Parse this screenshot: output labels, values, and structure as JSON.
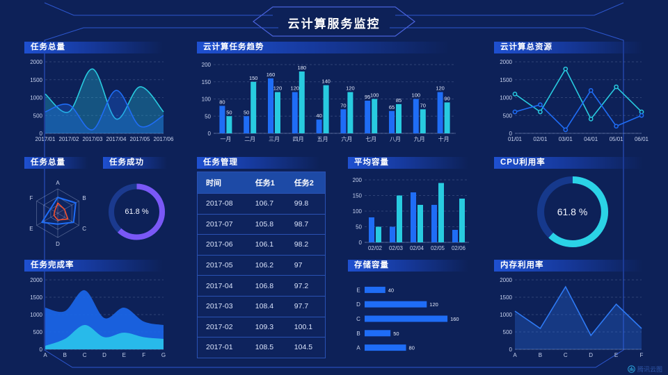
{
  "header": {
    "title": "云计算服务监控"
  },
  "watermark": {
    "label": "腾讯云图"
  },
  "colors": {
    "background": "#0d2158",
    "blue": "#1f6df6",
    "cyan": "#28cbe0",
    "purple": "#7a58f6",
    "cyan_bright": "#2bd3e6",
    "orange": "#f5502e",
    "donut_track": "#16398c",
    "axis_text": "#c7d2ee",
    "frame_line": "#2d57cf"
  },
  "panels": {
    "task_total_line": {
      "title": "任务总量"
    },
    "task_trend": {
      "title": "云计算任务趋势"
    },
    "total_resource": {
      "title": "云计算总资源"
    },
    "task_total_radar": {
      "title": "任务总量"
    },
    "task_success": {
      "title": "任务成功"
    },
    "task_manage": {
      "title": "任务管理"
    },
    "avg_capacity": {
      "title": "平均容量"
    },
    "cpu_usage": {
      "title": "CPU利用率"
    },
    "completion_rate": {
      "title": "任务完成率"
    },
    "storage": {
      "title": "存储容量"
    },
    "memory_usage": {
      "title": "内存利用率"
    }
  },
  "table": {
    "columns": [
      "时间",
      "任务1",
      "任务2"
    ],
    "rows": [
      [
        "2017-08",
        "106.7",
        "99.8"
      ],
      [
        "2017-07",
        "105.8",
        "98.7"
      ],
      [
        "2017-06",
        "106.1",
        "98.2"
      ],
      [
        "2017-05",
        "106.2",
        "97"
      ],
      [
        "2017-04",
        "106.8",
        "97.2"
      ],
      [
        "2017-03",
        "108.4",
        "97.7"
      ],
      [
        "2017-02",
        "109.3",
        "100.1"
      ],
      [
        "2017-01",
        "108.5",
        "104.5"
      ]
    ]
  },
  "chart_data": [
    {
      "type": "area",
      "title": "任务总量",
      "smooth": true,
      "fill_opacity": 0.3,
      "categories": [
        "2017/01",
        "2017/02",
        "2017/03",
        "2017/04",
        "2017/05",
        "2017/06"
      ],
      "series": [
        {
          "color": "#28cbe0",
          "values": [
            1100,
            600,
            1800,
            400,
            1300,
            600
          ]
        },
        {
          "color": "#1f6df6",
          "values": [
            600,
            800,
            100,
            1200,
            200,
            500
          ]
        }
      ],
      "ylim": [
        0,
        2000
      ],
      "yticks": [
        0,
        500,
        1000,
        1500,
        2000
      ]
    },
    {
      "type": "bar",
      "title": "云计算任务趋势",
      "value_labels": true,
      "categories": [
        "一月",
        "二月",
        "三月",
        "四月",
        "五月",
        "六月",
        "七月",
        "八月",
        "九月",
        "十月"
      ],
      "series": [
        {
          "color": "#1f6df6",
          "values": [
            80,
            50,
            160,
            120,
            40,
            70,
            95,
            65,
            100,
            120
          ]
        },
        {
          "color": "#28cbe0",
          "values": [
            50,
            150,
            120,
            180,
            140,
            120,
            100,
            85,
            70,
            90
          ]
        }
      ],
      "ylim": [
        0,
        200
      ],
      "yticks": [
        0,
        50,
        100,
        150,
        200
      ]
    },
    {
      "type": "line",
      "title": "云计算总资源",
      "smooth": false,
      "markers": true,
      "categories": [
        "01/01",
        "02/01",
        "03/01",
        "04/01",
        "05/01",
        "06/01"
      ],
      "series": [
        {
          "color": "#28cbe0",
          "values": [
            1100,
            600,
            1800,
            400,
            1300,
            600
          ]
        },
        {
          "color": "#1f6df6",
          "values": [
            600,
            800,
            100,
            1200,
            200,
            500
          ]
        }
      ],
      "ylim": [
        0,
        2000
      ],
      "yticks": [
        0,
        500,
        1000,
        1500,
        2000
      ]
    },
    {
      "type": "radar",
      "title": "任务总量",
      "axes": [
        "A",
        "B",
        "C",
        "D",
        "E",
        "F"
      ],
      "max": 100,
      "series": [
        {
          "color": "#1f6df6",
          "width": 2,
          "values": [
            65,
            85,
            75,
            45,
            75,
            35
          ]
        },
        {
          "color": "#f5502e",
          "width": 1.6,
          "values": [
            42,
            32,
            48,
            28,
            18,
            15
          ]
        }
      ]
    },
    {
      "type": "donut",
      "title": "任务成功",
      "value": 61.8,
      "unit": "%",
      "center_label": "61.8 %",
      "color": "#7a58f6",
      "track": "#1b3a8e"
    },
    {
      "type": "bar",
      "title": "平均容量",
      "value_labels": false,
      "categories": [
        "02/02",
        "02/03",
        "02/04",
        "02/05",
        "02/06"
      ],
      "series": [
        {
          "color": "#1f6df6",
          "values": [
            80,
            50,
            160,
            120,
            40
          ]
        },
        {
          "color": "#28cbe0",
          "values": [
            50,
            150,
            120,
            190,
            140
          ]
        }
      ],
      "ylim": [
        0,
        200
      ],
      "yticks": [
        0,
        50,
        100,
        150,
        200
      ]
    },
    {
      "type": "donut",
      "title": "CPU利用率",
      "value": 61.8,
      "unit": "%",
      "center_label": "61.8 %",
      "color": "#2bd3e6",
      "track": "#16398c"
    },
    {
      "type": "area",
      "title": "任务完成率",
      "smooth": true,
      "fill_opacity": 0.92,
      "no_stroke": true,
      "categories": [
        "A",
        "B",
        "C",
        "D",
        "E",
        "F",
        "G"
      ],
      "series": [
        {
          "color": "#1a66e8",
          "values": [
            1200,
            1100,
            1700,
            900,
            1200,
            800,
            700
          ]
        },
        {
          "color": "#29c2ea",
          "values": [
            100,
            300,
            700,
            350,
            480,
            350,
            300
          ]
        }
      ],
      "ylim": [
        0,
        2000
      ],
      "yticks": [
        0,
        500,
        1000,
        1500,
        2000
      ]
    },
    {
      "type": "hbar",
      "title": "存储容量",
      "color": "#1f6df6",
      "xmax": 172,
      "categories": [
        "E",
        "D",
        "C",
        "B",
        "A"
      ],
      "values": [
        40,
        120,
        160,
        50,
        80
      ]
    },
    {
      "type": "area",
      "title": "内存利用率",
      "smooth": false,
      "fill_opacity": 0.28,
      "categories": [
        "A",
        "B",
        "C",
        "D",
        "E",
        "F"
      ],
      "series": [
        {
          "color": "#2e7af5",
          "values": [
            1100,
            600,
            1800,
            400,
            1300,
            600
          ]
        }
      ],
      "ylim": [
        0,
        2000
      ],
      "yticks": [
        0,
        500,
        1000,
        1500,
        2000
      ]
    }
  ]
}
